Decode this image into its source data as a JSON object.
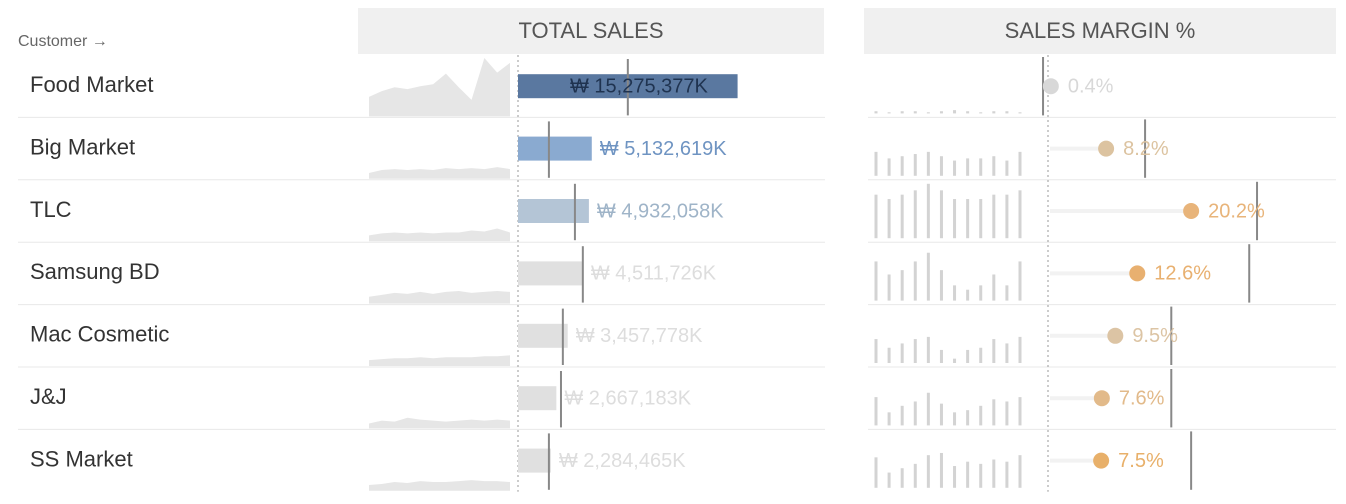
{
  "header": {
    "customer_label": "Customer →"
  },
  "chart_data": [
    {
      "type": "bar",
      "title": "TOTAL SALES",
      "categories": [
        "Food Market",
        "Big Market",
        "TLC",
        "Samsung BD",
        "Mac Cosmetic",
        "J&J",
        "SS Market"
      ],
      "values": [
        15275377,
        5132619,
        4932058,
        4511726,
        3457778,
        2667183,
        2284465
      ],
      "value_labels": [
        "₩ 15,275,377K",
        "₩ 5,132,619K",
        "₩ 4,932,058K",
        "₩ 4,511,726K",
        "₩ 3,457,778K",
        "₩ 2,667,183K",
        "₩ 2,284,465K"
      ],
      "colors": [
        "#5a78a0",
        "#8aaad0",
        "#b4c5d6",
        "#e0e0e0",
        "#e0e0e0",
        "#e0e0e0",
        "#e0e0e0"
      ],
      "label_colors": [
        "#1f3350",
        "#6f94c2",
        "#9fb4c8",
        "#dddddd",
        "#dddddd",
        "#dddddd",
        "#dddddd"
      ],
      "reference": [
        7640000,
        2150000,
        3960000,
        4510000,
        3120000,
        2990000,
        2150000
      ],
      "xlim": [
        0,
        16000000
      ],
      "trend": [
        [
          20,
          26,
          30,
          28,
          31,
          33,
          44,
          30,
          17,
          60,
          45,
          55
        ],
        [
          6,
          9,
          10,
          9,
          10,
          9,
          11,
          10,
          11,
          10,
          12,
          10
        ],
        [
          6,
          8,
          9,
          8,
          9,
          8,
          9,
          9,
          11,
          10,
          13,
          9
        ],
        [
          7,
          9,
          11,
          10,
          12,
          10,
          12,
          13,
          11,
          12,
          13,
          12
        ],
        [
          6,
          7,
          8,
          8,
          9,
          8,
          9,
          9,
          9,
          10,
          10,
          11
        ],
        [
          5,
          8,
          7,
          11,
          9,
          8,
          7,
          8,
          9,
          8,
          9,
          8
        ],
        [
          6,
          7,
          9,
          8,
          10,
          9,
          9,
          10,
          11,
          10,
          10,
          9
        ]
      ],
      "trend_ylim": [
        0,
        60
      ]
    },
    {
      "type": "dot",
      "title": "SALES MARGIN %",
      "values": [
        0.4,
        8.2,
        20.2,
        12.6,
        9.5,
        7.6,
        7.5
      ],
      "value_labels": [
        "0.4%",
        "8.2%",
        "20.2%",
        "12.6%",
        "9.5%",
        "7.6%",
        "7.5%"
      ],
      "colors": [
        "#d8d8d8",
        "#dcc3a0",
        "#e8b47a",
        "#e8b070",
        "#dcc4a4",
        "#e2ba8a",
        "#e8b06a"
      ],
      "reference": [
        -0.7,
        13.7,
        29.5,
        28.4,
        17.4,
        17.4,
        20.2
      ],
      "xlim": [
        0,
        35
      ],
      "trend": [
        [
          2,
          1,
          2,
          2,
          1,
          2,
          3,
          2,
          1,
          2,
          2,
          1
        ],
        [
          22,
          16,
          18,
          20,
          22,
          18,
          14,
          16,
          16,
          18,
          14,
          22
        ],
        [
          40,
          36,
          40,
          44,
          50,
          44,
          36,
          36,
          36,
          40,
          40,
          44
        ],
        [
          36,
          24,
          28,
          36,
          44,
          28,
          14,
          10,
          14,
          24,
          14,
          36
        ],
        [
          22,
          14,
          18,
          22,
          24,
          12,
          4,
          12,
          14,
          22,
          18,
          24
        ],
        [
          26,
          12,
          18,
          22,
          30,
          20,
          12,
          14,
          18,
          24,
          22,
          26
        ],
        [
          28,
          14,
          18,
          22,
          30,
          32,
          20,
          24,
          22,
          26,
          24,
          30
        ]
      ],
      "trend_ylim": [
        0,
        50
      ]
    }
  ]
}
